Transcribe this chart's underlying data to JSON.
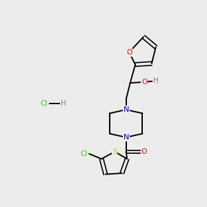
{
  "background_color": "#ececec",
  "atom_colors": {
    "C": "#000000",
    "N": "#0000cc",
    "O": "#ff0000",
    "S": "#cccc00",
    "Cl": "#33cc00",
    "H": "#808080"
  },
  "bond_color": "#000000",
  "hcl_cl_color": "#33cc00",
  "hcl_h_color": "#808080"
}
